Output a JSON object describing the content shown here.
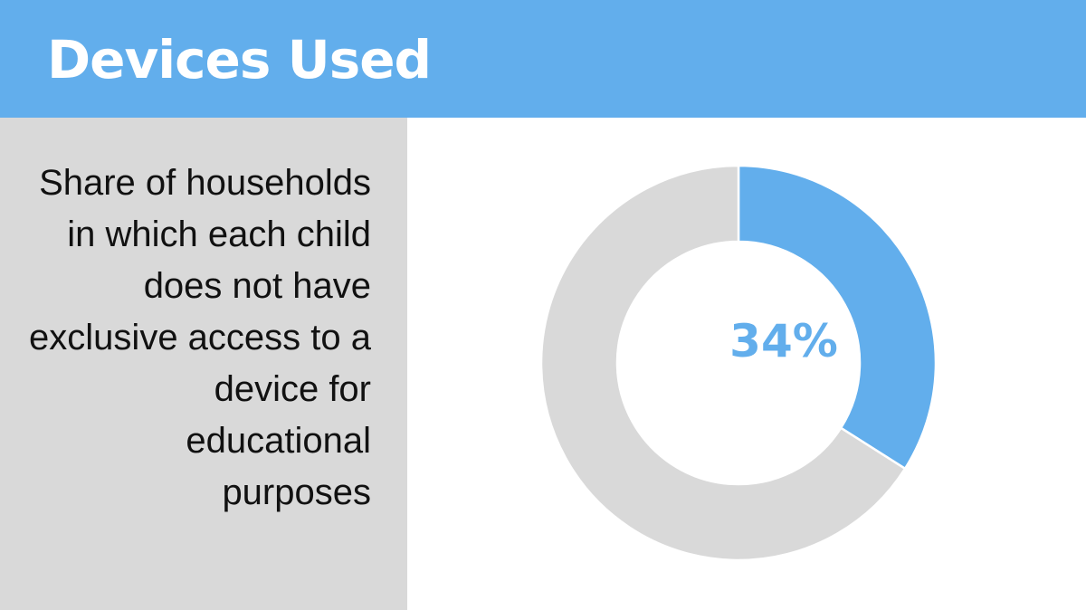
{
  "header": {
    "title": "Devices Used"
  },
  "panel": {
    "description": "Share of households in which each child does not have exclusive access to a device for educational purposes"
  },
  "colors": {
    "header_bg": "#62aeec",
    "panel_bg": "#d9d9d9",
    "highlight": "#62aeec",
    "remainder": "#d9d9d9",
    "divider": "#ffffff"
  },
  "chart_data": {
    "type": "pie",
    "variant": "donut",
    "slices": [
      {
        "value": 34,
        "color": "#62aeec"
      },
      {
        "value": 66,
        "color": "#d9d9d9"
      }
    ],
    "center_label": "34%",
    "start_angle": "12 o'clock",
    "direction": "clockwise",
    "legend": "none"
  }
}
